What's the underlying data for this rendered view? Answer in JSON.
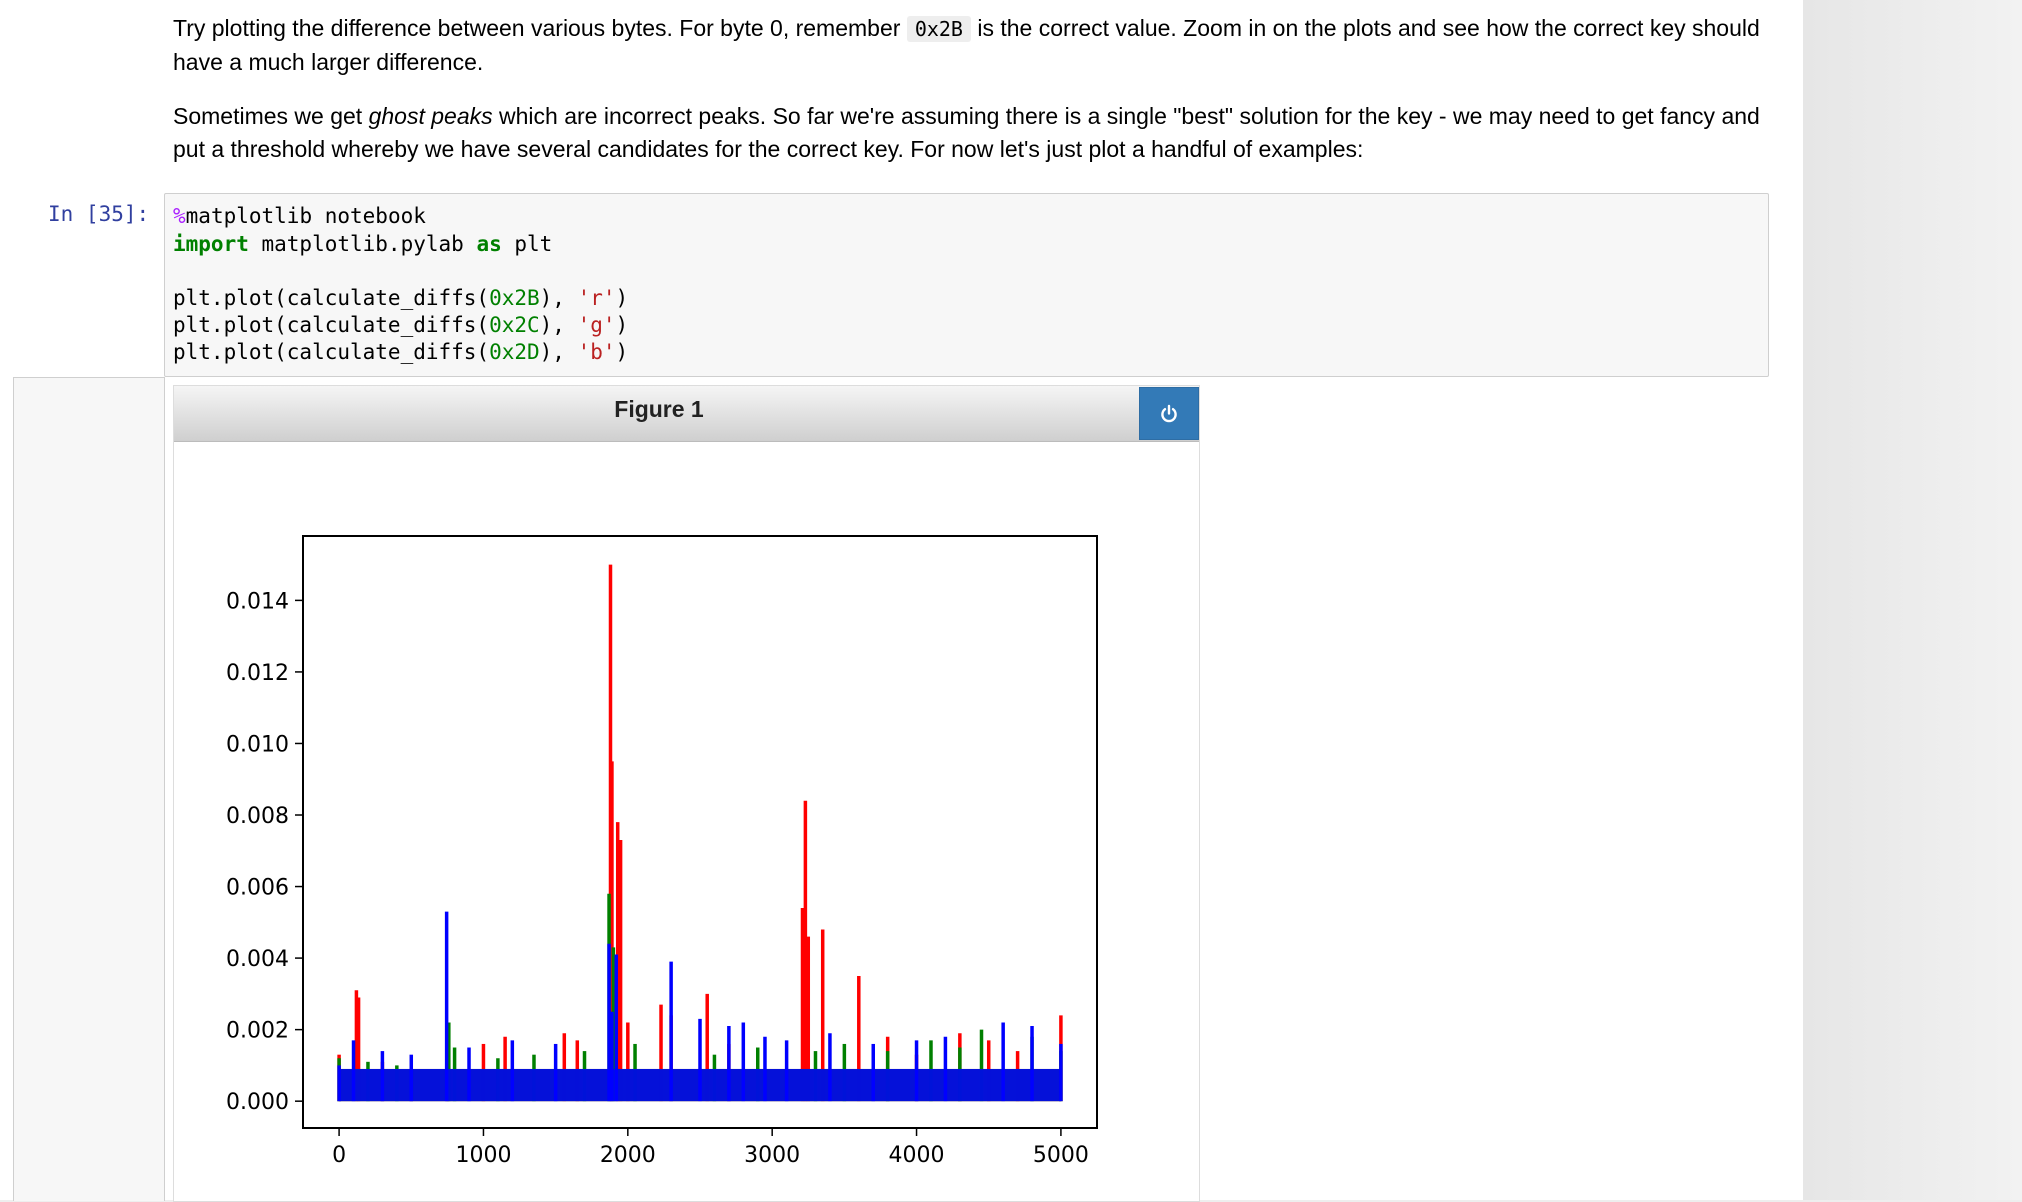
{
  "markdown": {
    "p1_a": "Try plotting the difference between various bytes. For byte 0, remember ",
    "p1_code": "0x2B",
    "p1_b": " is the correct value. Zoom in on the plots and see how the correct key should have a much larger difference.",
    "p2_a": "Sometimes we get ",
    "p2_em": "ghost peaks",
    "p2_b": " which are incorrect peaks. So far we're assuming there is a single \"best\" solution for the key - we may need to get fancy and put a threshold whereby we have several candidates for the correct key. For now let's just plot a handful of examples:"
  },
  "cell": {
    "prompt": "In [35]:",
    "line1_magic": "%",
    "line1_rest": "matplotlib notebook",
    "line2_kw1": "import",
    "line2_mod": " matplotlib.pylab ",
    "line2_kw2": "as",
    "line2_alias": " plt",
    "plot_lines": [
      {
        "pre": "plt.plot(calculate_diffs(",
        "num": "0x2B",
        "mid": "), ",
        "str": "'r'",
        "post": ")"
      },
      {
        "pre": "plt.plot(calculate_diffs(",
        "num": "0x2C",
        "mid": "), ",
        "str": "'g'",
        "post": ")"
      },
      {
        "pre": "plt.plot(calculate_diffs(",
        "num": "0x2D",
        "mid": "), ",
        "str": "'b'",
        "post": ")"
      }
    ]
  },
  "figure": {
    "title": "Figure 1",
    "power_icon": "power-icon",
    "button_color": "#337ab7"
  },
  "chart_data": {
    "type": "line",
    "title": "",
    "xlabel": "",
    "ylabel": "",
    "xlim": [
      -250,
      5250
    ],
    "ylim": [
      -0.00075,
      0.0158
    ],
    "xticks": [
      0,
      1000,
      2000,
      3000,
      4000,
      5000
    ],
    "xtick_labels": [
      "0",
      "1000",
      "2000",
      "3000",
      "4000",
      "5000"
    ],
    "yticks": [
      0.0,
      0.002,
      0.004,
      0.006,
      0.008,
      0.01,
      0.012,
      0.014
    ],
    "ytick_labels": [
      "0.000",
      "0.002",
      "0.004",
      "0.006",
      "0.008",
      "0.010",
      "0.012",
      "0.014"
    ],
    "grid": false,
    "series": [
      {
        "color": "#ff0000",
        "x": [
          0,
          120,
          135,
          300,
          500,
          750,
          1000,
          1150,
          1560,
          1650,
          1880,
          1890,
          1930,
          1950,
          2000,
          2230,
          2300,
          2550,
          2700,
          3210,
          3230,
          3250,
          3350,
          3600,
          3800,
          4000,
          4300,
          4500,
          4700,
          5000
        ],
        "y": [
          0.0013,
          0.0031,
          0.0029,
          0.0011,
          0.0009,
          0.0012,
          0.0016,
          0.0018,
          0.0019,
          0.0017,
          0.015,
          0.0095,
          0.0078,
          0.0073,
          0.0022,
          0.0027,
          0.0024,
          0.003,
          0.0016,
          0.0054,
          0.0084,
          0.0046,
          0.0048,
          0.0035,
          0.0018,
          0.0013,
          0.0019,
          0.0017,
          0.0014,
          0.0024
        ]
      },
      {
        "color": "#008000",
        "x": [
          0,
          200,
          400,
          760,
          800,
          1100,
          1350,
          1700,
          1870,
          1900,
          2050,
          2600,
          2900,
          3300,
          3500,
          3800,
          4100,
          4300,
          4450,
          4800,
          5000
        ],
        "y": [
          0.0012,
          0.0011,
          0.001,
          0.0022,
          0.0015,
          0.0012,
          0.0013,
          0.0014,
          0.0058,
          0.0043,
          0.0016,
          0.0013,
          0.0015,
          0.0014,
          0.0016,
          0.0014,
          0.0017,
          0.0015,
          0.002,
          0.0018,
          0.0014
        ]
      },
      {
        "color": "#0000ff",
        "x": [
          0,
          100,
          300,
          500,
          745,
          900,
          1200,
          1500,
          1870,
          1890,
          1920,
          2300,
          2500,
          2700,
          2800,
          2950,
          3100,
          3400,
          3700,
          4000,
          4200,
          4600,
          4800,
          5000
        ],
        "y": [
          0.001,
          0.0017,
          0.0014,
          0.0013,
          0.0053,
          0.0015,
          0.0017,
          0.0016,
          0.0044,
          0.0025,
          0.0041,
          0.0039,
          0.0023,
          0.0021,
          0.0022,
          0.0018,
          0.0017,
          0.0019,
          0.0016,
          0.0017,
          0.0018,
          0.0022,
          0.0021,
          0.0016
        ]
      }
    ]
  }
}
